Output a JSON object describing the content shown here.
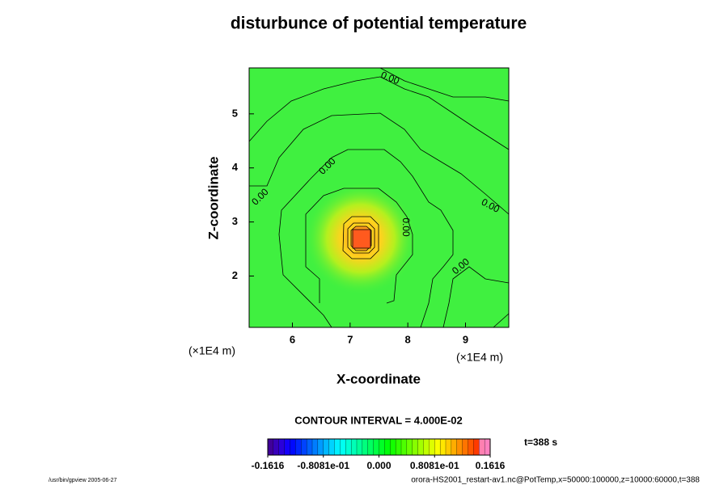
{
  "chart_data": {
    "type": "contour",
    "title": "disturbunce of potential temperature",
    "xlabel": "X-coordinate",
    "ylabel": "Z-coordinate",
    "x_unit": "(×1E4 m)",
    "y_unit": "(×1E4 m)",
    "xlim": [
      5.25,
      9.75
    ],
    "ylim": [
      1.05,
      5.85
    ],
    "xticks": [
      6,
      7,
      8,
      9
    ],
    "yticks": [
      2,
      3,
      4,
      5
    ],
    "contour_labels": [
      "0.00",
      "0.00",
      "0.00",
      "0.00",
      "0.00",
      "0.00"
    ],
    "contour_interval": "CONTOUR INTERVAL = 4.000E-02",
    "colorbar": {
      "lim": [
        -0.1616,
        0.1616
      ],
      "ticks": [
        {
          "value": -0.1616,
          "label": "-0.1616"
        },
        {
          "value": -0.08081,
          "label": "-0.8081e-01"
        },
        {
          "value": 0,
          "label": "0.000"
        },
        {
          "value": 0.08081,
          "label": "0.8081e-01"
        },
        {
          "value": 0.1616,
          "label": "0.1616"
        }
      ]
    },
    "time": "t=388 s",
    "footer_left": "/usr/bin/gpview 2005-06-27",
    "footer_right": "orora-HS2001_restart-av1.nc@PotTemp,x=50000:100000,z=10000:60000,t=388"
  }
}
